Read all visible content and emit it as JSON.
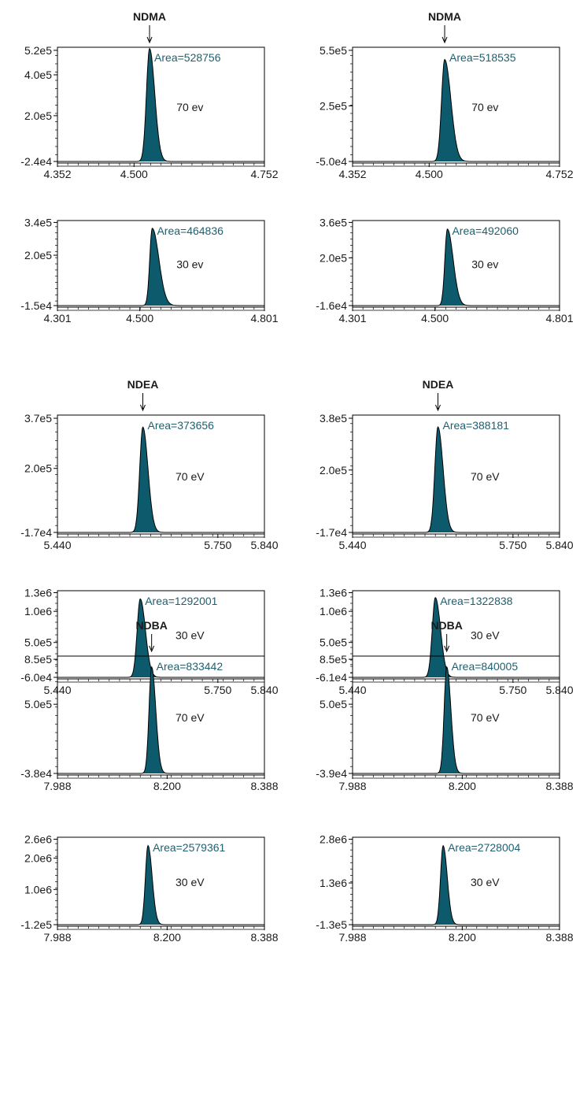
{
  "colors": {
    "peak_fill": "#0e5a6d",
    "area_text": "#1f5f6f",
    "axis": "#000000",
    "label_text": "#1a1a1a"
  },
  "chart_data": [
    {
      "type": "line",
      "compound": "NDMA",
      "energy": "70 ev",
      "area": "Area=528756",
      "xlim": [
        4.352,
        4.752
      ],
      "ylim": [
        -24000,
        520000
      ],
      "x_ticks": [
        "4.352",
        "4.500",
        "4.752"
      ],
      "y_ticks": [
        "5.2e5",
        "4.0e5",
        "2.0e5",
        "-2.4e4"
      ],
      "peak": {
        "rt": 4.53,
        "height": 528756,
        "baseline": -24000,
        "sigma": 0.006,
        "tail": 0.01
      }
    },
    {
      "type": "line",
      "compound": "NDMA",
      "energy": "70 ev",
      "area": "Area=518535",
      "xlim": [
        4.352,
        4.752
      ],
      "ylim": [
        -50000,
        550000
      ],
      "x_ticks": [
        "4.352",
        "4.500",
        "4.752"
      ],
      "y_ticks": [
        "5.5e5",
        "2.5e5",
        "-5.0e4"
      ],
      "peak": {
        "rt": 4.53,
        "height": 500000,
        "baseline": -50000,
        "sigma": 0.006,
        "tail": 0.012
      }
    },
    {
      "type": "line",
      "energy": "30 ev",
      "area": "Area=464836",
      "xlim": [
        4.301,
        4.801
      ],
      "ylim": [
        -15000,
        340000
      ],
      "x_ticks": [
        "4.301",
        "4.500",
        "4.801"
      ],
      "y_ticks": [
        "3.4e5",
        "2.0e5",
        "-1.5e4"
      ],
      "peak": {
        "rt": 4.53,
        "height": 315000,
        "baseline": -15000,
        "sigma": 0.006,
        "tail": 0.016
      }
    },
    {
      "type": "line",
      "energy": "30 ev",
      "area": "Area=492060",
      "xlim": [
        4.301,
        4.801
      ],
      "ylim": [
        -16000,
        360000
      ],
      "x_ticks": [
        "4.301",
        "4.500",
        "4.801"
      ],
      "y_ticks": [
        "3.6e5",
        "2.0e5",
        "-1.6e4"
      ],
      "peak": {
        "rt": 4.53,
        "height": 330000,
        "baseline": -16000,
        "sigma": 0.006,
        "tail": 0.014
      }
    },
    {
      "type": "line",
      "compound": "NDEA",
      "energy": "70 eV",
      "area": "Area=373656",
      "xlim": [
        5.44,
        5.84
      ],
      "ylim": [
        -17000,
        370000
      ],
      "x_ticks": [
        "5.440",
        "5.750",
        "5.840"
      ],
      "y_ticks": [
        "3.7e5",
        "2.0e5",
        "-1.7e4"
      ],
      "peak": {
        "rt": 5.605,
        "height": 340000,
        "baseline": -17000,
        "sigma": 0.006,
        "tail": 0.01
      }
    },
    {
      "type": "line",
      "compound": "NDEA",
      "energy": "70 eV",
      "area": "Area=388181",
      "xlim": [
        5.44,
        5.84
      ],
      "ylim": [
        -17000,
        380000
      ],
      "x_ticks": [
        "5.440",
        "5.750",
        "5.840"
      ],
      "y_ticks": [
        "3.8e5",
        "2.0e5",
        "-1.7e4"
      ],
      "peak": {
        "rt": 5.605,
        "height": 350000,
        "baseline": -17000,
        "sigma": 0.006,
        "tail": 0.01
      }
    },
    {
      "type": "line",
      "energy": "30 eV",
      "area": "Area=1292001",
      "xlim": [
        5.44,
        5.84
      ],
      "ylim": [
        -60000,
        1300000
      ],
      "x_ticks": [
        "5.440",
        "5.750",
        "5.840"
      ],
      "y_ticks": [
        "1.3e6",
        "1.0e6",
        "5.0e5",
        "-6.0e4"
      ],
      "peak": {
        "rt": 5.6,
        "height": 1200000,
        "baseline": -60000,
        "sigma": 0.006,
        "tail": 0.01
      }
    },
    {
      "type": "line",
      "energy": "30 eV",
      "area": "Area=1322838",
      "xlim": [
        5.44,
        5.84
      ],
      "ylim": [
        -61000,
        1300000
      ],
      "x_ticks": [
        "5.440",
        "5.750",
        "5.840"
      ],
      "y_ticks": [
        "1.3e6",
        "1.0e6",
        "5.0e5",
        "-6.1e4"
      ],
      "peak": {
        "rt": 5.6,
        "height": 1220000,
        "baseline": -61000,
        "sigma": 0.006,
        "tail": 0.01
      }
    },
    {
      "type": "line",
      "compound": "NDBA",
      "energy": "70 eV",
      "area": "Area=833442",
      "xlim": [
        7.988,
        8.388
      ],
      "ylim": [
        -38000,
        850000
      ],
      "x_ticks": [
        "7.988",
        "8.200",
        "8.388"
      ],
      "y_ticks": [
        "8.5e5",
        "5.0e5",
        "-3.8e4"
      ],
      "peak": {
        "rt": 8.17,
        "height": 790000,
        "baseline": -38000,
        "sigma": 0.005,
        "tail": 0.008
      }
    },
    {
      "type": "line",
      "compound": "NDBA",
      "energy": "70 eV",
      "area": "Area=840005",
      "xlim": [
        7.988,
        8.388
      ],
      "ylim": [
        -39000,
        850000
      ],
      "x_ticks": [
        "7.988",
        "8.200",
        "8.388"
      ],
      "y_ticks": [
        "8.5e5",
        "5.0e5",
        "-3.9e4"
      ],
      "peak": {
        "rt": 8.17,
        "height": 790000,
        "baseline": -39000,
        "sigma": 0.005,
        "tail": 0.008
      }
    },
    {
      "type": "line",
      "energy": "30 eV",
      "area": "Area=2579361",
      "xlim": [
        7.988,
        8.388
      ],
      "ylim": [
        -120000,
        2600000
      ],
      "x_ticks": [
        "7.988",
        "8.200",
        "8.388"
      ],
      "y_ticks": [
        "2.6e6",
        "2.0e6",
        "1.0e6",
        "-1.2e5"
      ],
      "peak": {
        "rt": 8.163,
        "height": 2400000,
        "baseline": -120000,
        "sigma": 0.005,
        "tail": 0.008
      }
    },
    {
      "type": "line",
      "energy": "30 eV",
      "area": "Area=2728004",
      "xlim": [
        7.988,
        8.388
      ],
      "ylim": [
        -130000,
        2800000
      ],
      "x_ticks": [
        "7.988",
        "8.200",
        "8.388"
      ],
      "y_ticks": [
        "2.8e6",
        "1.3e6",
        "-1.3e5"
      ],
      "peak": {
        "rt": 8.163,
        "height": 2580000,
        "baseline": -130000,
        "sigma": 0.005,
        "tail": 0.008
      }
    }
  ]
}
